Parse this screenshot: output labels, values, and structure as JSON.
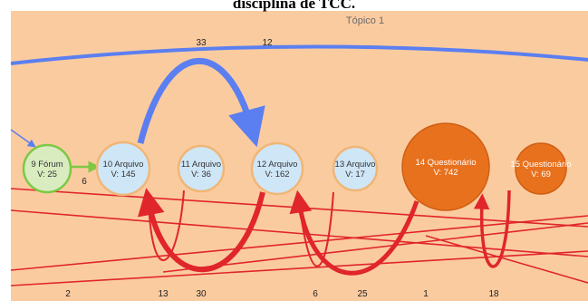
{
  "caption": "disciplina de TCC.",
  "topic": {
    "label": "Tópico 1",
    "background": "#fbcba0"
  },
  "colors": {
    "blue": "#5b7ff0",
    "green": "#7ec843",
    "red": "#e0262b",
    "light_node_fill": "#cfe6f7",
    "light_node_stroke": "#f0b676",
    "green_node_fill": "#d8ecc0",
    "orange_node_fill": "#e8711e",
    "orange_node_stroke": "#cf5f12"
  },
  "nodes": [
    {
      "id": "n9",
      "title": "9 Fórum",
      "visits": "V: 25",
      "kind": "green"
    },
    {
      "id": "n10",
      "title": "10 Arquivo",
      "visits": "V: 145",
      "kind": "light"
    },
    {
      "id": "n11",
      "title": "11 Arquivo",
      "visits": "V: 36",
      "kind": "light"
    },
    {
      "id": "n12",
      "title": "12 Arquivo",
      "visits": "V: 162",
      "kind": "light"
    },
    {
      "id": "n13",
      "title": "13 Arquivo",
      "visits": "V: 17",
      "kind": "light"
    },
    {
      "id": "n14",
      "title": "14 Questionário",
      "visits": "V: 742",
      "kind": "orange"
    },
    {
      "id": "n15",
      "title": "15 Questionário",
      "visits": "V: 69",
      "kind": "orange"
    }
  ],
  "edge_labels": {
    "top_33": "33",
    "top_12": "12",
    "green_6": "6",
    "bottom_2": "2",
    "bottom_13": "13",
    "bottom_30": "30",
    "bottom_6": "6",
    "bottom_25": "25",
    "bottom_1": "1",
    "bottom_18": "18"
  }
}
